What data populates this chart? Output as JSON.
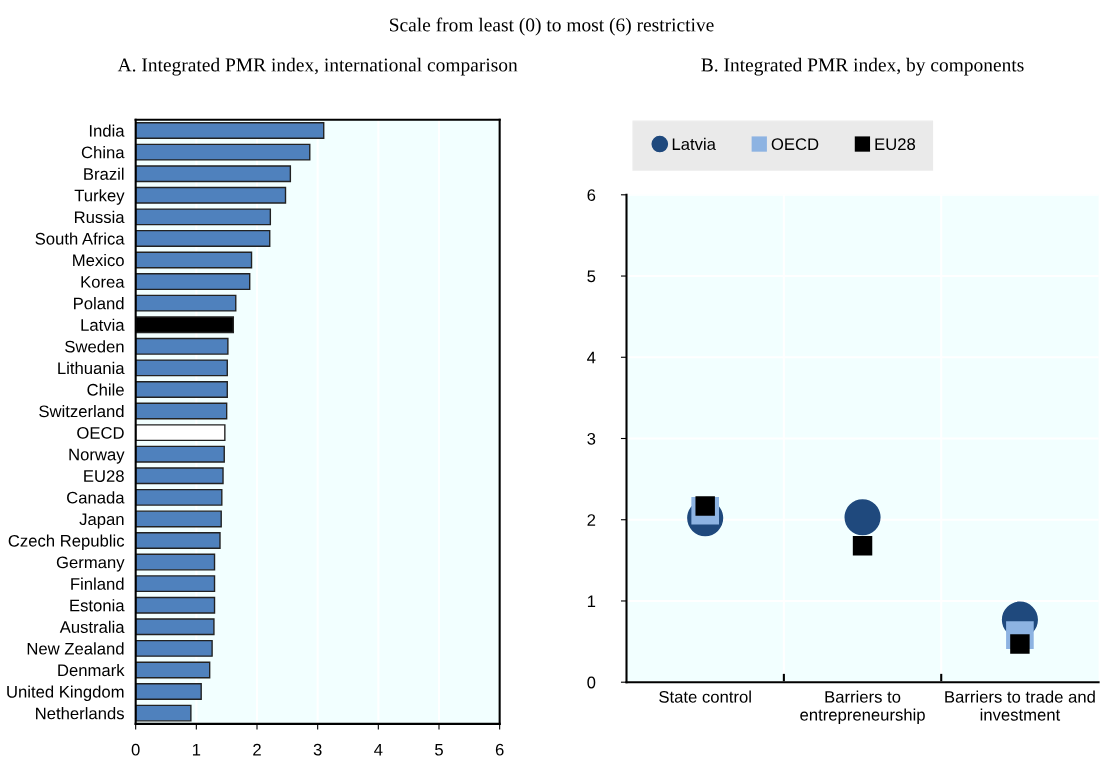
{
  "chart_data": [
    {
      "type": "bar",
      "orientation": "horizontal",
      "title": "A. Integrated PMR index, international comparison",
      "annotations": [
        "Scale from least (0) to most (6) restrictive"
      ],
      "categories": [
        "India",
        "China",
        "Brazil",
        "Turkey",
        "Russia",
        "South Africa",
        "Mexico",
        "Korea",
        "Poland",
        "Latvia",
        "Sweden",
        "Lithuania",
        "Chile",
        "Switzerland",
        "OECD",
        "Norway",
        "EU28",
        "Canada",
        "Japan",
        "Czech Republic",
        "Germany",
        "Finland",
        "Estonia",
        "Australia",
        "New Zealand",
        "Denmark",
        "United Kingdom",
        "Netherlands"
      ],
      "values": [
        3.1,
        2.87,
        2.55,
        2.47,
        2.22,
        2.21,
        1.91,
        1.88,
        1.65,
        1.61,
        1.52,
        1.51,
        1.51,
        1.5,
        1.47,
        1.46,
        1.44,
        1.42,
        1.41,
        1.39,
        1.3,
        1.3,
        1.3,
        1.29,
        1.26,
        1.22,
        1.08,
        0.91
      ],
      "colors": [
        "#4f81bd",
        "#4f81bd",
        "#4f81bd",
        "#4f81bd",
        "#4f81bd",
        "#4f81bd",
        "#4f81bd",
        "#4f81bd",
        "#4f81bd",
        "#000000",
        "#4f81bd",
        "#4f81bd",
        "#4f81bd",
        "#4f81bd",
        "#ffffff",
        "#4f81bd",
        "#4f81bd",
        "#4f81bd",
        "#4f81bd",
        "#4f81bd",
        "#4f81bd",
        "#4f81bd",
        "#4f81bd",
        "#4f81bd",
        "#4f81bd",
        "#4f81bd",
        "#4f81bd",
        "#4f81bd"
      ],
      "xlim": [
        0,
        6
      ],
      "xticks": [
        0,
        1,
        2,
        3,
        4,
        5,
        6
      ],
      "grid": "x"
    },
    {
      "type": "scatter",
      "title": "B. Integrated PMR index, by components",
      "categories": [
        "State control",
        "Barriers to\nentrepreneurship",
        "Barriers to trade and\ninvestment"
      ],
      "series": [
        {
          "name": "Latvia",
          "color": "#1f497d",
          "marker": "circle",
          "values": [
            2.02,
            2.03,
            0.77
          ]
        },
        {
          "name": "OECD",
          "color": "#8db3e2",
          "marker": "square",
          "values": [
            2.11,
            null,
            0.58
          ]
        },
        {
          "name": "EU28",
          "color": "#000000",
          "marker": "square",
          "values": [
            2.17,
            1.68,
            0.47
          ]
        }
      ],
      "ylim": [
        0,
        6
      ],
      "yticks": [
        0,
        1,
        2,
        3,
        4,
        5,
        6
      ],
      "grid": "y",
      "legend": "top"
    }
  ]
}
